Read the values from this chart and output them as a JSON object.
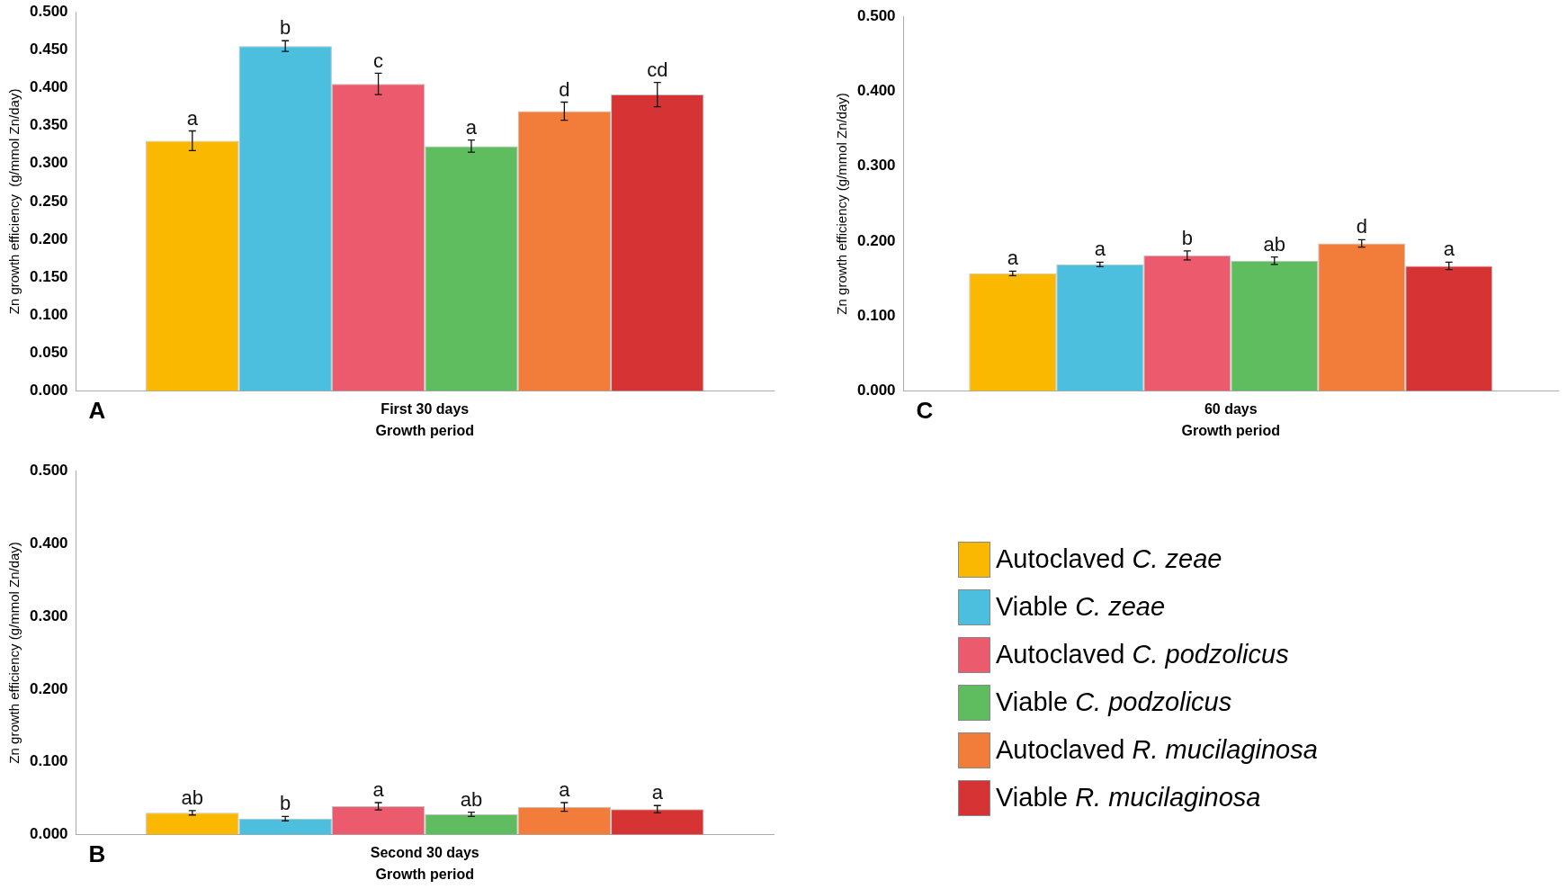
{
  "chart_data": [
    {
      "type": "bar",
      "categories": [
        "First 30 days"
      ],
      "xlabel": "Growth period",
      "ylabel": "Zn growth efficiency  (g/mmol Zn/day)",
      "ylim": [
        0,
        0.5
      ],
      "yticks": [
        {
          "value": 0,
          "label": "0.000"
        },
        {
          "value": 0.05,
          "label": "0.050"
        },
        {
          "value": 0.1,
          "label": "0.100"
        },
        {
          "value": 0.15,
          "label": "0.150"
        },
        {
          "value": 0.2,
          "label": "0.200"
        },
        {
          "value": 0.25,
          "label": "0.250"
        },
        {
          "value": 0.3,
          "label": "0.300"
        },
        {
          "value": 0.35,
          "label": "0.350"
        },
        {
          "value": 0.4,
          "label": "0.400"
        },
        {
          "value": 0.45,
          "label": "0.450"
        },
        {
          "value": 0.5,
          "label": "0.500"
        }
      ],
      "annotations": [
        "A"
      ],
      "series": [
        {
          "color": "#fbb800",
          "values": [
            0.33
          ],
          "errors": [
            0.013
          ],
          "value_labels": [
            "a"
          ]
        },
        {
          "color": "#4cbfdf",
          "values": [
            0.455
          ],
          "errors": [
            0.007
          ],
          "value_labels": [
            "b"
          ]
        },
        {
          "color": "#ec5a6e",
          "values": [
            0.405
          ],
          "errors": [
            0.014
          ],
          "value_labels": [
            "c"
          ]
        },
        {
          "color": "#5fbd5f",
          "values": [
            0.323
          ],
          "errors": [
            0.008
          ],
          "value_labels": [
            "a"
          ]
        },
        {
          "color": "#f27d3a",
          "values": [
            0.369
          ],
          "errors": [
            0.012
          ],
          "value_labels": [
            "d"
          ]
        },
        {
          "color": "#d63434",
          "values": [
            0.391
          ],
          "errors": [
            0.016
          ],
          "value_labels": [
            "cd"
          ]
        }
      ]
    },
    {
      "type": "bar",
      "categories": [
        "60 days"
      ],
      "xlabel": "Growth period",
      "ylabel": "Zn growth efficiency (g/mmol Zn/day)",
      "ylim": [
        0,
        0.5
      ],
      "yticks": [
        {
          "value": 0,
          "label": "0.000"
        },
        {
          "value": 0.1,
          "label": "0.100"
        },
        {
          "value": 0.2,
          "label": "0.200"
        },
        {
          "value": 0.3,
          "label": "0.300"
        },
        {
          "value": 0.4,
          "label": "0.400"
        },
        {
          "value": 0.5,
          "label": "0.500"
        }
      ],
      "annotations": [
        "C"
      ],
      "series": [
        {
          "color": "#fbb800",
          "values": [
            0.157
          ],
          "errors": [
            0.003
          ],
          "value_labels": [
            "a"
          ]
        },
        {
          "color": "#4cbfdf",
          "values": [
            0.169
          ],
          "errors": [
            0.003
          ],
          "value_labels": [
            "a"
          ]
        },
        {
          "color": "#ec5a6e",
          "values": [
            0.181
          ],
          "errors": [
            0.006
          ],
          "value_labels": [
            "b"
          ]
        },
        {
          "color": "#5fbd5f",
          "values": [
            0.174
          ],
          "errors": [
            0.005
          ],
          "value_labels": [
            "ab"
          ]
        },
        {
          "color": "#f27d3a",
          "values": [
            0.197
          ],
          "errors": [
            0.005
          ],
          "value_labels": [
            "d"
          ]
        },
        {
          "color": "#d63434",
          "values": [
            0.167
          ],
          "errors": [
            0.005
          ],
          "value_labels": [
            "a"
          ]
        }
      ]
    },
    {
      "type": "bar",
      "categories": [
        "Second 30 days"
      ],
      "xlabel": "Growth period",
      "ylabel": "Zn growth efficiency (g/mmol Zn/day)",
      "ylim": [
        0,
        0.5
      ],
      "yticks": [
        {
          "value": 0,
          "label": "0.000"
        },
        {
          "value": 0.1,
          "label": "0.100"
        },
        {
          "value": 0.2,
          "label": "0.200"
        },
        {
          "value": 0.3,
          "label": "0.300"
        },
        {
          "value": 0.4,
          "label": "0.400"
        },
        {
          "value": 0.5,
          "label": "0.500"
        }
      ],
      "annotations": [
        "B"
      ],
      "legend": "right",
      "series": [
        {
          "name": "Autoclaved C. zeae",
          "color": "#fbb800",
          "values": [
            0.03
          ],
          "errors": [
            0.003
          ],
          "value_labels": [
            "ab"
          ]
        },
        {
          "name": "Viable C. zeae",
          "color": "#4cbfdf",
          "values": [
            0.022
          ],
          "errors": [
            0.003
          ],
          "value_labels": [
            "b"
          ]
        },
        {
          "name": "Autoclaved C. podzolicus",
          "color": "#ec5a6e",
          "values": [
            0.039
          ],
          "errors": [
            0.005
          ],
          "value_labels": [
            "a"
          ]
        },
        {
          "name": "Viable C. podzolicus",
          "color": "#5fbd5f",
          "values": [
            0.028
          ],
          "errors": [
            0.003
          ],
          "value_labels": [
            "ab"
          ]
        },
        {
          "name": "Autoclaved R. mucilaginosa",
          "color": "#f27d3a",
          "values": [
            0.038
          ],
          "errors": [
            0.006
          ],
          "value_labels": [
            "a"
          ]
        },
        {
          "name": "Viable R. mucilaginosa",
          "color": "#d63434",
          "values": [
            0.035
          ],
          "errors": [
            0.005
          ],
          "value_labels": [
            "a"
          ]
        }
      ]
    }
  ]
}
